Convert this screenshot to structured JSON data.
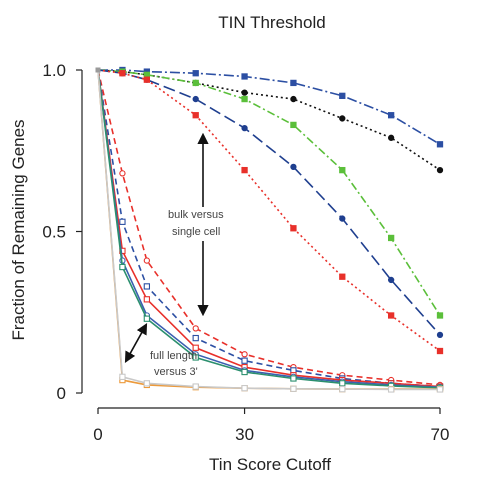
{
  "chart_data": {
    "type": "line",
    "title": "TIN Threshold",
    "xlabel": "Tin Score Cutoff",
    "ylabel": "Fraction of Remaining Genes",
    "xlim": [
      0,
      70
    ],
    "ylim": [
      0,
      1.0
    ],
    "xticks": [
      0,
      30,
      70
    ],
    "yticks": [
      "0",
      "0.5",
      "1.0"
    ],
    "grid": false,
    "legend": "none",
    "annotations": [
      {
        "text": "bulk versus",
        "line": 1
      },
      {
        "text": "single cell",
        "line": 2
      },
      {
        "text": "full length",
        "line": 1
      },
      {
        "text": "versus 3'",
        "line": 2
      }
    ],
    "series": [
      {
        "color": "#2c4fa3",
        "dash": "10,3,2,3",
        "marker": "square",
        "filled": true,
        "x": [
          0,
          5,
          10,
          20,
          30,
          40,
          50,
          60,
          70
        ],
        "y": [
          1.0,
          1.0,
          0.995,
          0.99,
          0.98,
          0.96,
          0.92,
          0.86,
          0.77
        ]
      },
      {
        "color": "#111111",
        "dash": "2,3",
        "marker": "circle",
        "filled": true,
        "x": [
          0,
          5,
          10,
          20,
          30,
          40,
          50,
          60,
          70
        ],
        "y": [
          1.0,
          0.995,
          0.985,
          0.96,
          0.93,
          0.91,
          0.85,
          0.79,
          0.69
        ]
      },
      {
        "color": "#5bbf3a",
        "dash": "8,3,2,3",
        "marker": "square",
        "filled": true,
        "x": [
          0,
          5,
          10,
          20,
          30,
          40,
          50,
          60,
          70
        ],
        "y": [
          1.0,
          0.995,
          0.985,
          0.96,
          0.91,
          0.83,
          0.69,
          0.48,
          0.24
        ]
      },
      {
        "color": "#1f3f8f",
        "dash": "12,5",
        "marker": "circle",
        "filled": true,
        "x": [
          0,
          5,
          10,
          20,
          30,
          40,
          50,
          60,
          70
        ],
        "y": [
          1.0,
          0.99,
          0.97,
          0.91,
          0.82,
          0.7,
          0.54,
          0.35,
          0.18
        ]
      },
      {
        "color": "#e8302a",
        "dash": "2,3",
        "marker": "square",
        "filled": true,
        "x": [
          0,
          5,
          10,
          20,
          30,
          40,
          50,
          60,
          70
        ],
        "y": [
          1.0,
          0.99,
          0.97,
          0.86,
          0.69,
          0.51,
          0.36,
          0.24,
          0.13
        ]
      },
      {
        "color": "#e8302a",
        "dash": "6,4",
        "marker": "circle",
        "filled": false,
        "x": [
          0,
          5,
          10,
          20,
          30,
          40,
          50,
          60,
          70
        ],
        "y": [
          1.0,
          0.68,
          0.41,
          0.2,
          0.12,
          0.08,
          0.055,
          0.04,
          0.025
        ]
      },
      {
        "color": "#2c4fa3",
        "dash": "6,4",
        "marker": "square",
        "filled": false,
        "x": [
          0,
          5,
          10,
          20,
          30,
          40,
          50,
          60,
          70
        ],
        "y": [
          1.0,
          0.53,
          0.33,
          0.17,
          0.1,
          0.07,
          0.045,
          0.03,
          0.02
        ]
      },
      {
        "color": "#e8302a",
        "dash": "",
        "marker": "square",
        "filled": false,
        "x": [
          0,
          5,
          10,
          20,
          30,
          40,
          50,
          60,
          70
        ],
        "y": [
          1.0,
          0.44,
          0.29,
          0.14,
          0.08,
          0.055,
          0.04,
          0.03,
          0.02
        ]
      },
      {
        "color": "#3b5fb0",
        "dash": "",
        "marker": "circle",
        "filled": false,
        "x": [
          0,
          5,
          10,
          20,
          30,
          40,
          50,
          60,
          70
        ],
        "y": [
          1.0,
          0.41,
          0.24,
          0.12,
          0.07,
          0.05,
          0.035,
          0.025,
          0.018
        ]
      },
      {
        "color": "#2b8f6e",
        "dash": "",
        "marker": "square",
        "filled": false,
        "x": [
          0,
          5,
          10,
          20,
          30,
          40,
          50,
          60,
          70
        ],
        "y": [
          1.0,
          0.39,
          0.23,
          0.11,
          0.065,
          0.045,
          0.03,
          0.022,
          0.016
        ]
      },
      {
        "color": "#ec9a3b",
        "dash": "",
        "marker": "square",
        "filled": false,
        "x": [
          0,
          5,
          10,
          20,
          30,
          40,
          50,
          60,
          70
        ],
        "y": [
          1.0,
          0.04,
          0.025,
          0.018,
          0.015,
          0.013,
          0.012,
          0.012,
          0.012
        ]
      },
      {
        "color": "#c9c9c9",
        "dash": "",
        "marker": "square",
        "filled": false,
        "x": [
          0,
          5,
          10,
          20,
          30,
          40,
          50,
          60,
          70
        ],
        "y": [
          1.0,
          0.05,
          0.03,
          0.02,
          0.015,
          0.013,
          0.012,
          0.011,
          0.011
        ]
      }
    ]
  }
}
